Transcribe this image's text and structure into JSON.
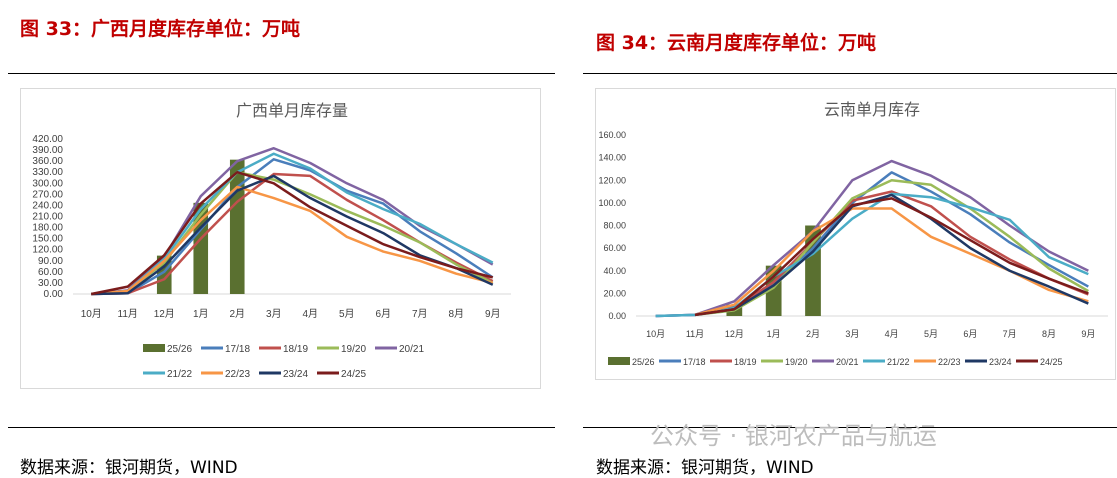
{
  "left": {
    "heading": "图 33：广西月度库存单位：万吨",
    "source": "数据来源：银河期货，WIND"
  },
  "right": {
    "heading": "图 34：云南月度库存单位：万吨",
    "source": "数据来源：银河期货，WIND"
  },
  "watermark": "公众号 · 银河农产品与航运",
  "colors": {
    "25/26": "#5a7030",
    "17/18": "#4a7ebb",
    "18/19": "#c0504d",
    "19/20": "#9bbb59",
    "20/21": "#8064a2",
    "21/22": "#4bacc6",
    "22/23": "#f79646",
    "23/24": "#1f3864",
    "24/25": "#7b1c1c"
  },
  "chart_data": [
    {
      "type": "bar+line",
      "title": "广西单月库存量",
      "categories": [
        "10月",
        "11月",
        "12月",
        "1月",
        "2月",
        "3月",
        "4月",
        "5月",
        "6月",
        "7月",
        "8月",
        "9月"
      ],
      "ylim": [
        0,
        420
      ],
      "yticks": [
        "0.00",
        "30.00",
        "60.00",
        "90.00",
        "120.00",
        "150.00",
        "180.00",
        "210.00",
        "240.00",
        "270.00",
        "300.00",
        "330.00",
        "360.00",
        "390.00",
        "420.00"
      ],
      "legend": "bottom",
      "bar_series": {
        "name": "25/26",
        "values": [
          null,
          null,
          104,
          247,
          364,
          null,
          null,
          null,
          null,
          null,
          null,
          null
        ]
      },
      "series": [
        {
          "name": "17/18",
          "values": [
            0,
            2,
            60,
            175,
            290,
            365,
            335,
            280,
            245,
            170,
            110,
            45
          ]
        },
        {
          "name": "18/19",
          "values": [
            0,
            2,
            40,
            150,
            250,
            325,
            320,
            255,
            200,
            140,
            85,
            35
          ]
        },
        {
          "name": "19/20",
          "values": [
            0,
            8,
            85,
            215,
            330,
            310,
            270,
            225,
            185,
            140,
            80,
            30
          ]
        },
        {
          "name": "20/21",
          "values": [
            0,
            10,
            100,
            265,
            360,
            395,
            355,
            300,
            255,
            185,
            135,
            80
          ]
        },
        {
          "name": "21/22",
          "values": [
            0,
            8,
            95,
            230,
            330,
            380,
            340,
            275,
            230,
            190,
            135,
            85
          ]
        },
        {
          "name": "22/23",
          "values": [
            0,
            8,
            90,
            200,
            290,
            260,
            225,
            155,
            115,
            90,
            55,
            30
          ]
        },
        {
          "name": "23/24",
          "values": [
            0,
            2,
            75,
            180,
            280,
            320,
            260,
            210,
            165,
            105,
            70,
            25
          ]
        },
        {
          "name": "24/25",
          "values": [
            0,
            20,
            105,
            245,
            330,
            300,
            235,
            185,
            135,
            100,
            70,
            45
          ]
        }
      ]
    },
    {
      "type": "bar+line",
      "title": "云南单月库存",
      "categories": [
        "10月",
        "11月",
        "12月",
        "1月",
        "2月",
        "3月",
        "4月",
        "5月",
        "6月",
        "7月",
        "8月",
        "9月"
      ],
      "ylim": [
        0,
        160
      ],
      "yticks": [
        "0.00",
        "20.00",
        "40.00",
        "60.00",
        "80.00",
        "100.00",
        "120.00",
        "140.00",
        "160.00"
      ],
      "legend": "bottom",
      "bar_series": {
        "name": "25/26",
        "values": [
          null,
          null,
          10,
          44.5,
          80,
          null,
          null,
          null,
          null,
          null,
          null,
          null
        ]
      },
      "series": [
        {
          "name": "17/18",
          "values": [
            0,
            1,
            8,
            28,
            60,
            100,
            127,
            110,
            90,
            65,
            45,
            26
          ]
        },
        {
          "name": "18/19",
          "values": [
            null,
            1,
            7,
            30,
            65,
            102,
            110,
            97,
            70,
            50,
            33,
            19
          ]
        },
        {
          "name": "19/20",
          "values": [
            null,
            1,
            5,
            25,
            65,
            104,
            120,
            116,
            95,
            70,
            42,
            22
          ]
        },
        {
          "name": "20/21",
          "values": [
            0,
            1,
            13,
            45,
            75,
            120,
            137,
            124,
            105,
            80,
            57,
            40
          ]
        },
        {
          "name": "21/22",
          "values": [
            0,
            1,
            7,
            35,
            55,
            86,
            108,
            105,
            96,
            85,
            52,
            37
          ]
        },
        {
          "name": "22/23",
          "values": [
            null,
            1,
            10,
            40,
            75,
            95,
            95,
            70,
            55,
            40,
            23,
            13
          ]
        },
        {
          "name": "23/24",
          "values": [
            null,
            1,
            6,
            27,
            57,
            97,
            107,
            86,
            60,
            40,
            26,
            11
          ]
        },
        {
          "name": "24/25",
          "values": [
            null,
            1,
            6,
            35,
            68,
            98,
            104,
            87,
            67,
            47,
            33,
            20
          ]
        }
      ]
    }
  ]
}
